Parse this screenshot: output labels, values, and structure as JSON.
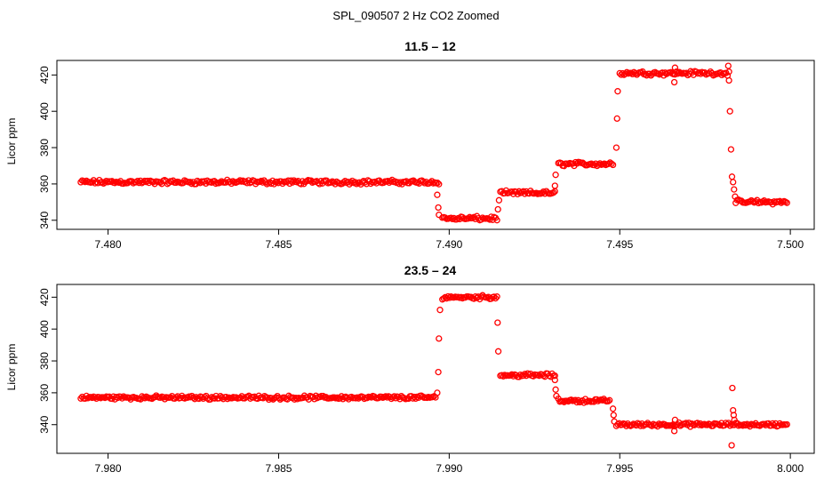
{
  "figure": {
    "title": "SPL_090507  2 Hz CO2 Zoomed"
  },
  "chart_data": [
    {
      "type": "scatter",
      "title": "11.5 – 12",
      "xlabel": "",
      "ylabel": "Licor ppm",
      "xlim": [
        7.4785,
        7.5007
      ],
      "ylim": [
        335,
        428
      ],
      "x_ticks": [
        "7.480",
        "7.485",
        "7.490",
        "7.495",
        "7.500"
      ],
      "x_tick_values": [
        7.48,
        7.485,
        7.49,
        7.495,
        7.5
      ],
      "y_ticks": [
        "340",
        "360",
        "380",
        "400",
        "420"
      ],
      "y_tick_values": [
        340,
        360,
        380,
        400,
        420
      ],
      "grid": false,
      "marker": "open-circle",
      "color": "#ff0000",
      "segments": [
        {
          "x_start": 7.4792,
          "x_end": 7.4897,
          "y": 361
        },
        {
          "x_start": 7.4898,
          "x_end": 7.4914,
          "y": 341
        },
        {
          "x_start": 7.4915,
          "x_end": 7.4931,
          "y": 355
        },
        {
          "x_start": 7.4932,
          "x_end": 7.4948,
          "y": 371
        },
        {
          "x_start": 7.495,
          "x_end": 7.4982,
          "y": 421
        },
        {
          "x_start": 7.4984,
          "x_end": 7.4999,
          "y": 350
        }
      ],
      "transitions": [
        {
          "x": 7.48965,
          "y": 354
        },
        {
          "x": 7.48968,
          "y": 347
        },
        {
          "x": 7.4897,
          "y": 343
        },
        {
          "x": 7.49143,
          "y": 346
        },
        {
          "x": 7.49146,
          "y": 351
        },
        {
          "x": 7.4931,
          "y": 359
        },
        {
          "x": 7.49312,
          "y": 365
        },
        {
          "x": 7.4949,
          "y": 380
        },
        {
          "x": 7.49492,
          "y": 396
        },
        {
          "x": 7.49494,
          "y": 411
        },
        {
          "x": 7.4966,
          "y": 416
        },
        {
          "x": 7.49662,
          "y": 424
        },
        {
          "x": 7.49818,
          "y": 425
        },
        {
          "x": 7.4982,
          "y": 417
        },
        {
          "x": 7.49823,
          "y": 400
        },
        {
          "x": 7.49826,
          "y": 379
        },
        {
          "x": 7.49829,
          "y": 364
        },
        {
          "x": 7.49832,
          "y": 361
        },
        {
          "x": 7.49835,
          "y": 357
        },
        {
          "x": 7.49838,
          "y": 353
        }
      ]
    },
    {
      "type": "scatter",
      "title": "23.5 – 24",
      "xlabel": "",
      "ylabel": "Licor ppm",
      "xlim": [
        7.9785,
        8.0007
      ],
      "ylim": [
        322,
        428
      ],
      "x_ticks": [
        "7.980",
        "7.985",
        "7.990",
        "7.995",
        "8.000"
      ],
      "x_tick_values": [
        7.98,
        7.985,
        7.99,
        7.995,
        8.0
      ],
      "y_ticks": [
        "340",
        "360",
        "380",
        "400",
        "420"
      ],
      "y_tick_values": [
        340,
        360,
        380,
        400,
        420
      ],
      "grid": false,
      "marker": "open-circle",
      "color": "#ff0000",
      "segments": [
        {
          "x_start": 7.9792,
          "x_end": 7.9896,
          "y": 357
        },
        {
          "x_start": 7.9898,
          "x_end": 7.9914,
          "y": 420
        },
        {
          "x_start": 7.9915,
          "x_end": 7.9931,
          "y": 371
        },
        {
          "x_start": 7.9932,
          "x_end": 7.9947,
          "y": 355
        },
        {
          "x_start": 7.9949,
          "x_end": 7.9999,
          "y": 340
        }
      ],
      "transitions": [
        {
          "x": 7.98965,
          "y": 360
        },
        {
          "x": 7.98968,
          "y": 373
        },
        {
          "x": 7.9897,
          "y": 394
        },
        {
          "x": 7.98973,
          "y": 412
        },
        {
          "x": 7.99142,
          "y": 404
        },
        {
          "x": 7.99144,
          "y": 386
        },
        {
          "x": 7.9931,
          "y": 368
        },
        {
          "x": 7.99312,
          "y": 362
        },
        {
          "x": 7.99314,
          "y": 358
        },
        {
          "x": 7.9948,
          "y": 350
        },
        {
          "x": 7.99482,
          "y": 346
        },
        {
          "x": 7.99484,
          "y": 342
        },
        {
          "x": 7.9966,
          "y": 336
        },
        {
          "x": 7.99662,
          "y": 343
        },
        {
          "x": 7.99828,
          "y": 327
        },
        {
          "x": 7.9983,
          "y": 363
        },
        {
          "x": 7.99832,
          "y": 349
        },
        {
          "x": 7.99834,
          "y": 346
        },
        {
          "x": 7.99836,
          "y": 343
        }
      ]
    }
  ]
}
